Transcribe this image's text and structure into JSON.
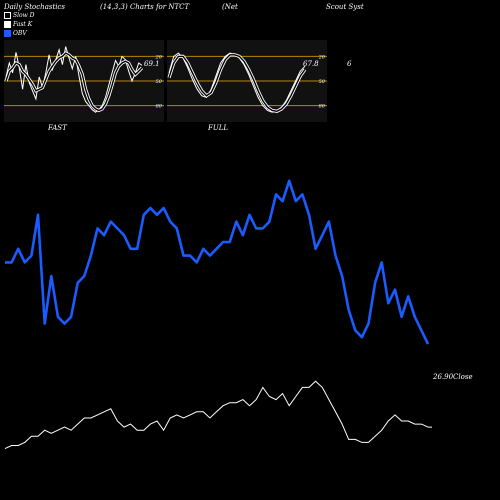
{
  "header": {
    "left": "Daily Stochastics",
    "params": "(14,3,3) Charts for NTCT",
    "name1": "(Net",
    "name2": "Scout Syst"
  },
  "legend": [
    {
      "label": "Slow D",
      "color": "#000000",
      "border": "#ffffff"
    },
    {
      "label": "Fast K",
      "color": "#ffffff",
      "border": "#ffffff"
    },
    {
      "label": "OBV",
      "color": "#1a5cff",
      "border": "#1a5cff"
    }
  ],
  "colors": {
    "background": "#000000",
    "obv": "#1a5cff",
    "price": "#ffffff",
    "grid": "#b8860b",
    "panel": "#111111"
  },
  "chart_data": [
    {
      "type": "line",
      "panel": "FAST",
      "label": "FAST",
      "ylim": [
        0,
        100
      ],
      "gridlines": [
        20,
        50,
        80
      ],
      "tick_labels": [
        "80",
        "50",
        "20"
      ],
      "last_value_label": "69.1",
      "series": [
        {
          "name": "Fast K",
          "values": [
            55,
            72,
            60,
            85,
            66,
            40,
            70,
            48,
            38,
            28,
            55,
            42,
            60,
            82,
            64,
            76,
            88,
            70,
            92,
            78,
            65,
            80,
            56,
            35,
            25,
            20,
            15,
            12,
            15,
            20,
            30,
            45,
            60,
            75,
            68,
            80,
            76,
            62,
            50,
            60,
            72,
            69
          ]
        },
        {
          "name": "Slow D",
          "values": [
            50,
            62,
            66,
            72,
            70,
            62,
            58,
            52,
            46,
            38,
            40,
            42,
            52,
            62,
            68,
            74,
            78,
            80,
            84,
            82,
            78,
            76,
            68,
            58,
            40,
            28,
            20,
            16,
            14,
            16,
            22,
            32,
            45,
            60,
            68,
            72,
            74,
            72,
            64,
            58,
            62,
            66
          ]
        }
      ]
    },
    {
      "type": "line",
      "panel": "FULL",
      "label": "FULL",
      "ylim": [
        0,
        100
      ],
      "gridlines": [
        20,
        50,
        80
      ],
      "tick_labels": [
        "80",
        "50",
        "20"
      ],
      "last_value_label": "67.8",
      "side_label": "6",
      "series": [
        {
          "name": "Fast K",
          "values": [
            60,
            80,
            84,
            78,
            66,
            52,
            40,
            32,
            30,
            40,
            56,
            72,
            80,
            84,
            82,
            78,
            70,
            58,
            44,
            30,
            20,
            14,
            12,
            14,
            18,
            26,
            38,
            50,
            62,
            68
          ]
        },
        {
          "name": "Slow D",
          "values": [
            54,
            72,
            80,
            80,
            72,
            60,
            48,
            38,
            32,
            36,
            48,
            64,
            76,
            82,
            82,
            80,
            74,
            64,
            52,
            38,
            26,
            18,
            14,
            13,
            16,
            22,
            32,
            44,
            56,
            64
          ]
        }
      ]
    },
    {
      "type": "line",
      "panel": "main",
      "close_label": "26.90Close",
      "series": [
        {
          "name": "OBV",
          "values": [
            64,
            64,
            68,
            64,
            66,
            78,
            46,
            60,
            48,
            46,
            48,
            58,
            60,
            66,
            74,
            72,
            76,
            74,
            72,
            68,
            68,
            78,
            80,
            78,
            80,
            76,
            74,
            66,
            66,
            64,
            68,
            66,
            68,
            70,
            70,
            76,
            72,
            78,
            74,
            74,
            76,
            84,
            82,
            88,
            82,
            84,
            78,
            68,
            72,
            76,
            66,
            60,
            50,
            44,
            42,
            46,
            58,
            64,
            52,
            56,
            48,
            54,
            48,
            44,
            40
          ]
        },
        {
          "name": "Close",
          "values": [
            24,
            25,
            25,
            26,
            28,
            28,
            30,
            29,
            30,
            31,
            30,
            32,
            34,
            34,
            35,
            36,
            37,
            33,
            31,
            32,
            30,
            30,
            32,
            33,
            30,
            34,
            35,
            34,
            35,
            36,
            36,
            34,
            36,
            38,
            39,
            39,
            40,
            38,
            40,
            44,
            41,
            40,
            42,
            38,
            41,
            44,
            44,
            46,
            44,
            40,
            36,
            32,
            27,
            27,
            26,
            26,
            28,
            30,
            33,
            35,
            33,
            33,
            32,
            32,
            31
          ]
        }
      ]
    }
  ]
}
